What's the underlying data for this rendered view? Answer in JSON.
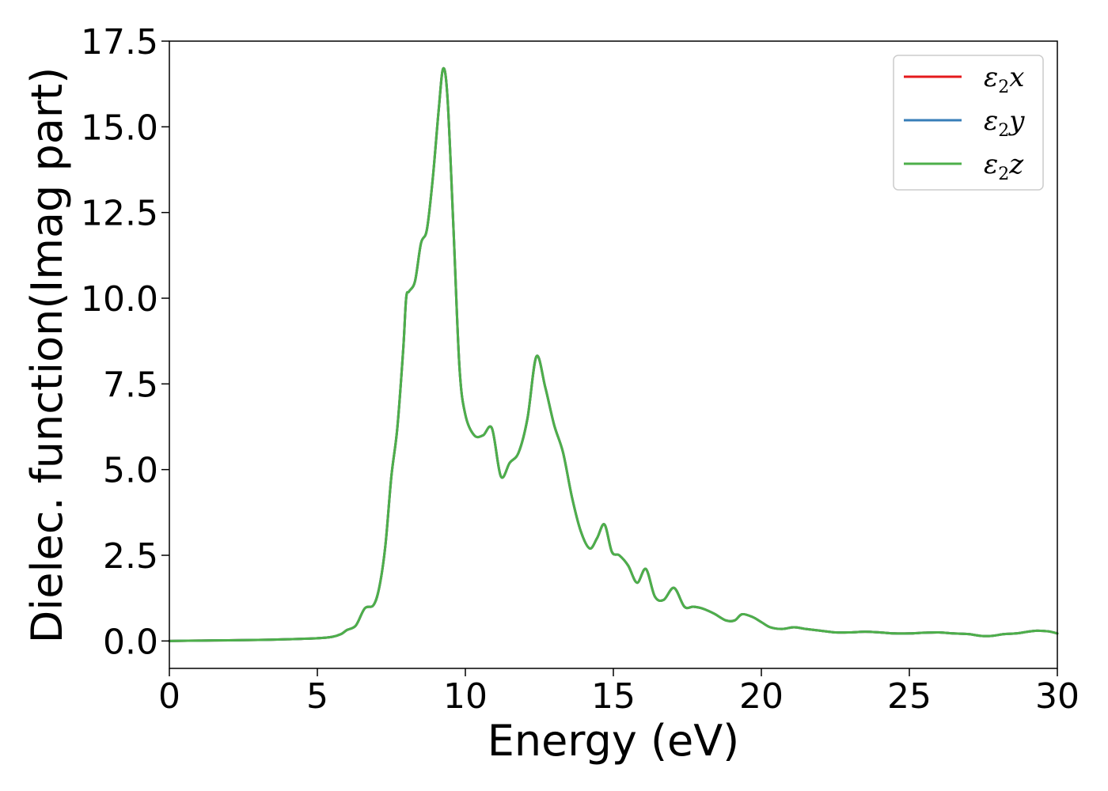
{
  "chart_data": {
    "type": "line",
    "title": "",
    "xlabel": "Energy (eV)",
    "ylabel": "Dielec. function(Imag part)",
    "xlim": [
      0,
      30
    ],
    "ylim": [
      -0.8,
      17.5
    ],
    "xticks": [
      0,
      5,
      10,
      15,
      20,
      25,
      30
    ],
    "xtick_labels": [
      "0",
      "5",
      "10",
      "15",
      "20",
      "25",
      "30"
    ],
    "yticks": [
      0.0,
      2.5,
      5.0,
      7.5,
      10.0,
      12.5,
      15.0,
      17.5
    ],
    "ytick_labels": [
      "0.0",
      "2.5",
      "5.0",
      "7.5",
      "10.0",
      "12.5",
      "15.0",
      "17.5"
    ],
    "grid": false,
    "legend_position": "top-right",
    "x": [
      0,
      1,
      2,
      3,
      4,
      5,
      5.5,
      5.8,
      6.0,
      6.3,
      6.6,
      6.9,
      7.1,
      7.3,
      7.5,
      7.7,
      7.9,
      8.0,
      8.1,
      8.3,
      8.5,
      8.7,
      8.9,
      9.1,
      9.25,
      9.4,
      9.6,
      9.8,
      10.0,
      10.3,
      10.6,
      10.9,
      11.2,
      11.5,
      11.8,
      12.1,
      12.4,
      12.7,
      13.0,
      13.3,
      13.6,
      13.9,
      14.2,
      14.45,
      14.7,
      14.95,
      15.2,
      15.5,
      15.8,
      16.1,
      16.4,
      16.7,
      17.05,
      17.4,
      17.7,
      18.0,
      18.4,
      18.8,
      19.1,
      19.35,
      19.7,
      20.0,
      20.3,
      20.7,
      21.1,
      21.5,
      22.0,
      22.5,
      23.0,
      23.5,
      24.0,
      24.5,
      25.0,
      25.5,
      26.0,
      26.5,
      27.0,
      27.4,
      27.8,
      28.2,
      28.6,
      29.0,
      29.3,
      29.7,
      30.0
    ],
    "series": [
      {
        "name": "ε2x",
        "label_main": "ε",
        "label_sub": "2",
        "label_axis": "x",
        "color": "#e41a1c",
        "values": [
          0.0,
          0.01,
          0.02,
          0.03,
          0.05,
          0.08,
          0.12,
          0.2,
          0.32,
          0.45,
          0.95,
          1.05,
          1.6,
          2.8,
          4.8,
          6.2,
          8.5,
          10.0,
          10.2,
          10.5,
          11.6,
          12.0,
          13.5,
          15.5,
          16.7,
          15.8,
          12.0,
          8.0,
          6.6,
          6.0,
          6.0,
          6.2,
          4.8,
          5.2,
          5.5,
          6.5,
          8.3,
          7.4,
          6.3,
          5.5,
          4.2,
          3.2,
          2.7,
          3.0,
          3.4,
          2.6,
          2.5,
          2.2,
          1.7,
          2.1,
          1.3,
          1.2,
          1.55,
          1.0,
          1.0,
          0.95,
          0.8,
          0.6,
          0.6,
          0.78,
          0.7,
          0.55,
          0.4,
          0.35,
          0.4,
          0.35,
          0.3,
          0.25,
          0.25,
          0.27,
          0.25,
          0.22,
          0.22,
          0.24,
          0.25,
          0.22,
          0.2,
          0.15,
          0.15,
          0.2,
          0.22,
          0.27,
          0.3,
          0.28,
          0.22
        ]
      },
      {
        "name": "ε2y",
        "label_main": "ε",
        "label_sub": "2",
        "label_axis": "y",
        "color": "#377eb8",
        "values": [
          0.0,
          0.01,
          0.02,
          0.03,
          0.05,
          0.08,
          0.12,
          0.2,
          0.32,
          0.45,
          0.95,
          1.05,
          1.6,
          2.8,
          4.8,
          6.2,
          8.5,
          10.0,
          10.2,
          10.5,
          11.6,
          12.0,
          13.5,
          15.5,
          16.7,
          15.8,
          12.0,
          8.0,
          6.6,
          6.0,
          6.0,
          6.2,
          4.8,
          5.2,
          5.5,
          6.5,
          8.3,
          7.4,
          6.3,
          5.5,
          4.2,
          3.2,
          2.7,
          3.0,
          3.4,
          2.6,
          2.5,
          2.2,
          1.7,
          2.1,
          1.3,
          1.2,
          1.55,
          1.0,
          1.0,
          0.95,
          0.8,
          0.6,
          0.6,
          0.78,
          0.7,
          0.55,
          0.4,
          0.35,
          0.4,
          0.35,
          0.3,
          0.25,
          0.25,
          0.27,
          0.25,
          0.22,
          0.22,
          0.24,
          0.25,
          0.22,
          0.2,
          0.15,
          0.15,
          0.2,
          0.22,
          0.27,
          0.3,
          0.28,
          0.22
        ]
      },
      {
        "name": "ε2z",
        "label_main": "ε",
        "label_sub": "2",
        "label_axis": "z",
        "color": "#4daf4a",
        "values": [
          0.0,
          0.01,
          0.02,
          0.03,
          0.05,
          0.08,
          0.12,
          0.2,
          0.32,
          0.45,
          0.95,
          1.05,
          1.6,
          2.8,
          4.8,
          6.2,
          8.5,
          10.0,
          10.2,
          10.5,
          11.6,
          12.0,
          13.5,
          15.5,
          16.7,
          15.8,
          12.0,
          8.0,
          6.6,
          6.0,
          6.0,
          6.2,
          4.8,
          5.2,
          5.5,
          6.5,
          8.3,
          7.4,
          6.3,
          5.5,
          4.2,
          3.2,
          2.7,
          3.0,
          3.4,
          2.6,
          2.5,
          2.2,
          1.7,
          2.1,
          1.3,
          1.2,
          1.55,
          1.0,
          1.0,
          0.95,
          0.8,
          0.6,
          0.6,
          0.78,
          0.7,
          0.55,
          0.4,
          0.35,
          0.4,
          0.35,
          0.3,
          0.25,
          0.25,
          0.27,
          0.25,
          0.22,
          0.22,
          0.24,
          0.25,
          0.22,
          0.2,
          0.15,
          0.15,
          0.2,
          0.22,
          0.27,
          0.3,
          0.28,
          0.22
        ]
      }
    ]
  }
}
